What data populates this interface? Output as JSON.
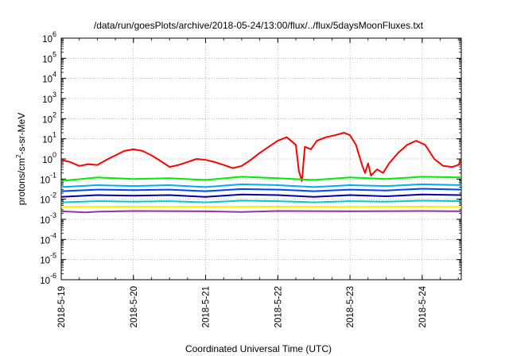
{
  "chart_data": {
    "type": "line",
    "title": "/data/run/goesPlots/archive/2018-05-24/13:00/flux/../flux/5daysMoonFluxes.txt",
    "xlabel": "Coordinated Universal Time (UTC)",
    "ylabel": {
      "pre": "protons/cm",
      "sup": "2",
      "post": "-s-sr-MeV"
    },
    "x_ticks": [
      "2018-5-19",
      "2018-5-20",
      "2018-5-21",
      "2018-5-22",
      "2018-5-23",
      "2018-5-24"
    ],
    "xlim": [
      "2018-05-19 00:00",
      "2018-05-24 13:00"
    ],
    "yscale": "log",
    "ylim": [
      1e-06,
      1000000.0
    ],
    "y_ticks": [
      {
        "base": "10",
        "exp": "-6"
      },
      {
        "base": "10",
        "exp": "-5"
      },
      {
        "base": "10",
        "exp": "-4"
      },
      {
        "base": "10",
        "exp": "-3"
      },
      {
        "base": "10",
        "exp": "-2"
      },
      {
        "base": "10",
        "exp": "-1"
      },
      {
        "base": "10",
        "exp": "0"
      },
      {
        "base": "10",
        "exp": "1"
      },
      {
        "base": "10",
        "exp": "2"
      },
      {
        "base": "10",
        "exp": "3"
      },
      {
        "base": "10",
        "exp": "4"
      },
      {
        "base": "10",
        "exp": "5"
      },
      {
        "base": "10",
        "exp": "6"
      }
    ],
    "grid": true,
    "legend": "none",
    "series": [
      {
        "color": "#ff0000",
        "points": [
          [
            "2018-05-19 00:00",
            0.9
          ],
          [
            "2018-05-19 03:00",
            0.7
          ],
          [
            "2018-05-19 06:00",
            0.45
          ],
          [
            "2018-05-19 09:00",
            0.55
          ],
          [
            "2018-05-19 12:00",
            0.5
          ],
          [
            "2018-05-19 15:00",
            0.9
          ],
          [
            "2018-05-19 18:00",
            1.5
          ],
          [
            "2018-05-19 21:00",
            2.5
          ],
          [
            "2018-05-20 00:00",
            3.0
          ],
          [
            "2018-05-20 03:00",
            2.5
          ],
          [
            "2018-05-20 06:00",
            1.5
          ],
          [
            "2018-05-20 09:00",
            0.8
          ],
          [
            "2018-05-20 12:00",
            0.4
          ],
          [
            "2018-05-20 15:00",
            0.5
          ],
          [
            "2018-05-20 18:00",
            0.7
          ],
          [
            "2018-05-20 21:00",
            1.0
          ],
          [
            "2018-05-21 00:00",
            0.9
          ],
          [
            "2018-05-21 03:00",
            0.7
          ],
          [
            "2018-05-21 06:00",
            0.5
          ],
          [
            "2018-05-21 09:00",
            0.35
          ],
          [
            "2018-05-21 12:00",
            0.45
          ],
          [
            "2018-05-21 15:00",
            0.9
          ],
          [
            "2018-05-21 18:00",
            2.0
          ],
          [
            "2018-05-21 21:00",
            4.0
          ],
          [
            "2018-05-22 00:00",
            8.0
          ],
          [
            "2018-05-22 03:00",
            12.0
          ],
          [
            "2018-05-22 06:00",
            5.0
          ],
          [
            "2018-05-22 07:00",
            0.25
          ],
          [
            "2018-05-22 08:00",
            0.08
          ],
          [
            "2018-05-22 09:00",
            4.0
          ],
          [
            "2018-05-22 11:00",
            3.0
          ],
          [
            "2018-05-22 13:00",
            8.0
          ],
          [
            "2018-05-22 16:00",
            12.0
          ],
          [
            "2018-05-22 19:00",
            15.0
          ],
          [
            "2018-05-22 22:00",
            20.0
          ],
          [
            "2018-05-23 00:00",
            15.0
          ],
          [
            "2018-05-23 02:00",
            5.0
          ],
          [
            "2018-05-23 04:00",
            0.5
          ],
          [
            "2018-05-23 05:00",
            0.2
          ],
          [
            "2018-05-23 06:00",
            0.6
          ],
          [
            "2018-05-23 07:00",
            0.15
          ],
          [
            "2018-05-23 09:00",
            0.3
          ],
          [
            "2018-05-23 11:00",
            0.2
          ],
          [
            "2018-05-23 13:00",
            0.6
          ],
          [
            "2018-05-23 16:00",
            2.0
          ],
          [
            "2018-05-23 19:00",
            5.0
          ],
          [
            "2018-05-23 22:00",
            8.0
          ],
          [
            "2018-05-24 01:00",
            5.0
          ],
          [
            "2018-05-24 04:00",
            1.0
          ],
          [
            "2018-05-24 07:00",
            0.45
          ],
          [
            "2018-05-24 10:00",
            0.4
          ],
          [
            "2018-05-24 12:00",
            0.5
          ],
          [
            "2018-05-24 13:00",
            0.9
          ]
        ]
      },
      {
        "color": "#00ee00",
        "points": [
          [
            "2018-05-19 00:00",
            0.08
          ],
          [
            "2018-05-19 12:00",
            0.12
          ],
          [
            "2018-05-20 00:00",
            0.1
          ],
          [
            "2018-05-20 12:00",
            0.11
          ],
          [
            "2018-05-21 00:00",
            0.09
          ],
          [
            "2018-05-21 12:00",
            0.13
          ],
          [
            "2018-05-22 00:00",
            0.11
          ],
          [
            "2018-05-22 12:00",
            0.09
          ],
          [
            "2018-05-23 00:00",
            0.12
          ],
          [
            "2018-05-23 12:00",
            0.1
          ],
          [
            "2018-05-24 00:00",
            0.13
          ],
          [
            "2018-05-24 13:00",
            0.12
          ]
        ]
      },
      {
        "color": "#00aaff",
        "points": [
          [
            "2018-05-19 00:00",
            0.04
          ],
          [
            "2018-05-19 12:00",
            0.05
          ],
          [
            "2018-05-20 00:00",
            0.045
          ],
          [
            "2018-05-20 12:00",
            0.05
          ],
          [
            "2018-05-21 00:00",
            0.04
          ],
          [
            "2018-05-21 12:00",
            0.055
          ],
          [
            "2018-05-22 00:00",
            0.05
          ],
          [
            "2018-05-22 12:00",
            0.04
          ],
          [
            "2018-05-23 00:00",
            0.05
          ],
          [
            "2018-05-23 12:00",
            0.045
          ],
          [
            "2018-05-24 00:00",
            0.055
          ],
          [
            "2018-05-24 13:00",
            0.05
          ]
        ]
      },
      {
        "color": "#0044ff",
        "points": [
          [
            "2018-05-19 00:00",
            0.025
          ],
          [
            "2018-05-19 12:00",
            0.03
          ],
          [
            "2018-05-20 00:00",
            0.028
          ],
          [
            "2018-05-20 12:00",
            0.03
          ],
          [
            "2018-05-21 00:00",
            0.025
          ],
          [
            "2018-05-21 12:00",
            0.032
          ],
          [
            "2018-05-22 00:00",
            0.03
          ],
          [
            "2018-05-22 12:00",
            0.025
          ],
          [
            "2018-05-23 00:00",
            0.03
          ],
          [
            "2018-05-23 12:00",
            0.027
          ],
          [
            "2018-05-24 00:00",
            0.033
          ],
          [
            "2018-05-24 13:00",
            0.03
          ]
        ]
      },
      {
        "color": "#0000aa",
        "points": [
          [
            "2018-05-19 00:00",
            0.013
          ],
          [
            "2018-05-19 12:00",
            0.016
          ],
          [
            "2018-05-20 00:00",
            0.015
          ],
          [
            "2018-05-20 12:00",
            0.016
          ],
          [
            "2018-05-21 00:00",
            0.013
          ],
          [
            "2018-05-21 12:00",
            0.017
          ],
          [
            "2018-05-22 00:00",
            0.016
          ],
          [
            "2018-05-22 12:00",
            0.013
          ],
          [
            "2018-05-23 00:00",
            0.016
          ],
          [
            "2018-05-23 12:00",
            0.014
          ],
          [
            "2018-05-24 00:00",
            0.017
          ],
          [
            "2018-05-24 13:00",
            0.016
          ]
        ]
      },
      {
        "color": "#00cccc",
        "points": [
          [
            "2018-05-19 00:00",
            0.007
          ],
          [
            "2018-05-19 12:00",
            0.008
          ],
          [
            "2018-05-20 00:00",
            0.0075
          ],
          [
            "2018-05-20 12:00",
            0.008
          ],
          [
            "2018-05-21 00:00",
            0.007
          ],
          [
            "2018-05-21 12:00",
            0.0085
          ],
          [
            "2018-05-22 00:00",
            0.008
          ],
          [
            "2018-05-22 12:00",
            0.007
          ],
          [
            "2018-05-23 00:00",
            0.008
          ],
          [
            "2018-05-23 12:00",
            0.0075
          ],
          [
            "2018-05-24 00:00",
            0.0085
          ],
          [
            "2018-05-24 13:00",
            0.008
          ]
        ]
      },
      {
        "color": "#ffee00",
        "points": [
          [
            "2018-05-19 00:00",
            0.0042
          ],
          [
            "2018-05-20 00:00",
            0.0043
          ],
          [
            "2018-05-21 00:00",
            0.0042
          ],
          [
            "2018-05-22 00:00",
            0.0043
          ],
          [
            "2018-05-23 00:00",
            0.0042
          ],
          [
            "2018-05-24 00:00",
            0.0043
          ],
          [
            "2018-05-24 13:00",
            0.0042
          ]
        ]
      },
      {
        "color": "#993399",
        "points": [
          [
            "2018-05-19 00:00",
            0.0025
          ],
          [
            "2018-05-19 08:00",
            0.0022
          ],
          [
            "2018-05-19 12:00",
            0.0024
          ],
          [
            "2018-05-20 00:00",
            0.0026
          ],
          [
            "2018-05-21 00:00",
            0.0025
          ],
          [
            "2018-05-21 12:00",
            0.0023
          ],
          [
            "2018-05-22 00:00",
            0.0026
          ],
          [
            "2018-05-23 00:00",
            0.0025
          ],
          [
            "2018-05-24 00:00",
            0.0026
          ],
          [
            "2018-05-24 13:00",
            0.0025
          ]
        ]
      }
    ]
  }
}
